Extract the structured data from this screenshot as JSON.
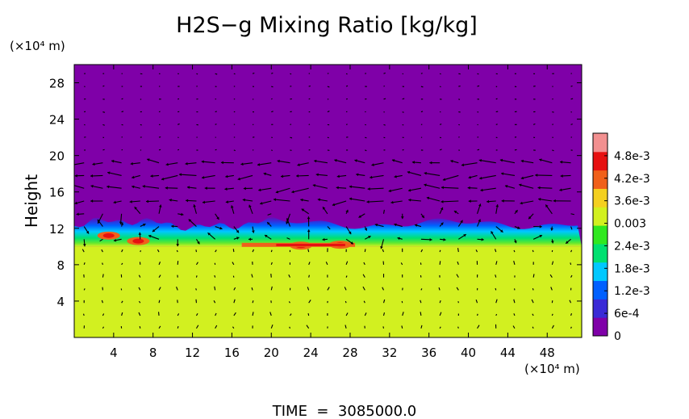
{
  "chart_data": {
    "type": "heatmap",
    "title": "H2S−g Mixing Ratio [kg/kg]",
    "ylabel": "Height",
    "x_unit": "(×10⁴ m)",
    "y_unit": "(×10⁴ m)",
    "xlim": [
      0,
      51.5
    ],
    "ylim": [
      0,
      30
    ],
    "x_ticks": [
      4,
      8,
      12,
      16,
      20,
      24,
      28,
      32,
      36,
      40,
      44,
      48
    ],
    "y_ticks": [
      4,
      8,
      12,
      16,
      20,
      24,
      28
    ],
    "colorbar": {
      "range": [
        0,
        0.0054
      ],
      "tick_values": [
        0,
        0.0006,
        0.0012,
        0.0018,
        0.0024,
        0.003,
        0.0036,
        0.0042,
        0.0048
      ],
      "tick_labels": [
        "0",
        "6e-4",
        "1.2e-3",
        "1.8e-3",
        "2.4e-3",
        "0.003",
        "3.6e-3",
        "4.2e-3",
        "4.8e-3"
      ],
      "colors": [
        "#7f00a8",
        "#3a2ad6",
        "#0060ff",
        "#00c8ff",
        "#00e070",
        "#30e820",
        "#d2f020",
        "#f4d020",
        "#f0601a",
        "#e61010",
        "#f29090"
      ]
    },
    "regions": {
      "lower_layer_top_height": 10.0,
      "lower_layer_value": 0.0035,
      "transition_top_height": 12.5,
      "upper_layer_value": 0.0
    },
    "hotspots": [
      {
        "x": 3.5,
        "y": 11.2,
        "value": 0.0048
      },
      {
        "x": 6.5,
        "y": 10.6,
        "value": 0.0044
      },
      {
        "x": 23.0,
        "y": 10.1,
        "value": 0.0044
      },
      {
        "x": 27.0,
        "y": 10.2,
        "value": 0.0042
      }
    ],
    "vectors": "horizontal velocity field overlay; strong leftward flow near heights 15–19, weak in lower layer"
  },
  "time_label": "TIME  =  3085000.0"
}
